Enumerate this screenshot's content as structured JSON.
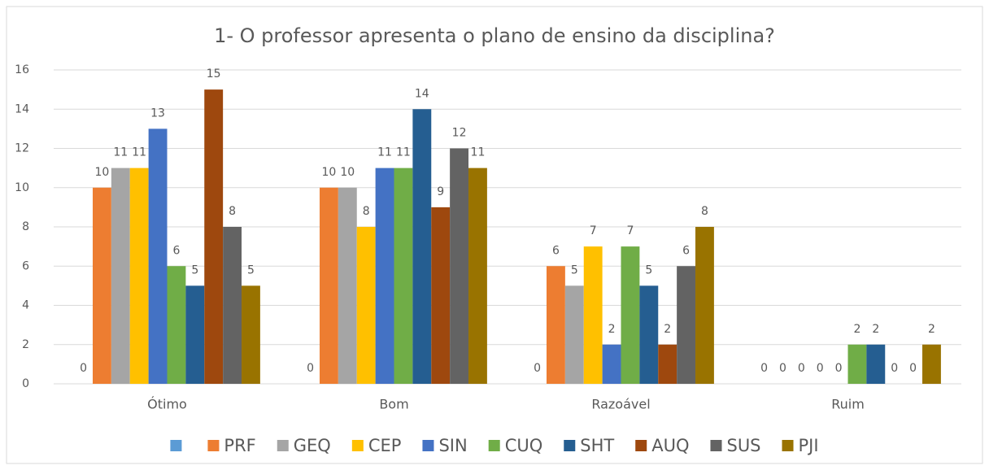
{
  "chart_data": {
    "type": "bar",
    "title": "1- O professor apresenta o plano de ensino da disciplina?",
    "categories": [
      "Ótimo",
      "Bom",
      "Razoável",
      "Ruim"
    ],
    "series": [
      {
        "name": null,
        "color": "#5b9bd5",
        "values": [
          0,
          0,
          0,
          0
        ]
      },
      {
        "name": "PRF",
        "color": "#ed7d31",
        "values": [
          10,
          10,
          6,
          0
        ]
      },
      {
        "name": "GEQ",
        "color": "#a5a5a5",
        "values": [
          11,
          10,
          5,
          0
        ]
      },
      {
        "name": "CEP",
        "color": "#ffc000",
        "values": [
          11,
          8,
          7,
          0
        ]
      },
      {
        "name": "SIN",
        "color": "#4472c4",
        "values": [
          13,
          11,
          2,
          0
        ]
      },
      {
        "name": "CUQ",
        "color": "#70ad47",
        "values": [
          6,
          11,
          7,
          2
        ]
      },
      {
        "name": "SHT",
        "color": "#255e91",
        "values": [
          5,
          14,
          5,
          2
        ]
      },
      {
        "name": "AUQ",
        "color": "#9e480e",
        "values": [
          15,
          9,
          2,
          0
        ]
      },
      {
        "name": "SUS",
        "color": "#636363",
        "values": [
          8,
          12,
          6,
          0
        ]
      },
      {
        "name": "PJI",
        "color": "#997300",
        "values": [
          5,
          11,
          8,
          2
        ]
      }
    ],
    "ylim": [
      0,
      16
    ],
    "yticks": [
      0,
      2,
      4,
      6,
      8,
      10,
      12,
      14,
      16
    ],
    "grid": true,
    "legend": "bottom"
  }
}
